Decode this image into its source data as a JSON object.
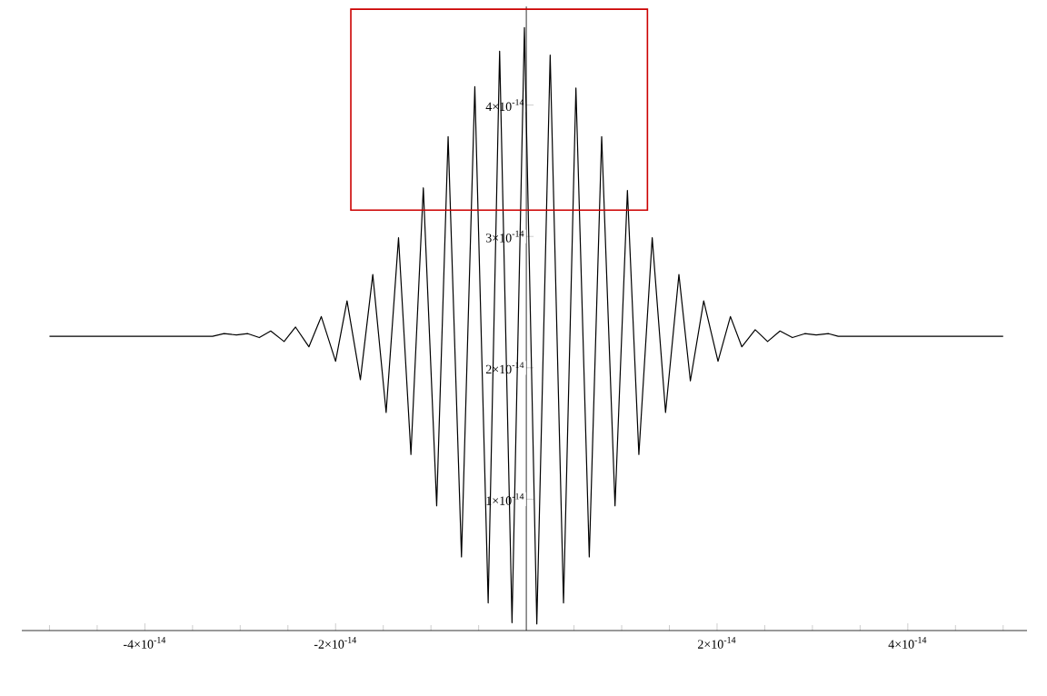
{
  "chart_data": {
    "type": "line",
    "x": [
      -5e-14,
      -3.29e-14,
      -3.17e-14,
      -3.04e-14,
      -2.92e-14,
      -2.8e-14,
      -2.68e-14,
      -2.54e-14,
      -2.42e-14,
      -2.28e-14,
      -2.15e-14,
      -2e-14,
      -1.88e-14,
      -1.74e-14,
      -1.61e-14,
      -1.47e-14,
      -1.34e-14,
      -1.21e-14,
      -1.08e-14,
      -9.4e-15,
      -8.2e-15,
      -6.8e-15,
      -5.4e-15,
      -4e-15,
      -2.8e-15,
      -1.5e-15,
      -2e-16,
      1.1e-15,
      2.5e-15,
      3.9e-15,
      5.2e-15,
      6.6e-15,
      7.9e-15,
      9.3e-15,
      1.06e-14,
      1.18e-14,
      1.32e-14,
      1.46e-14,
      1.6e-14,
      1.72e-14,
      1.86e-14,
      2.01e-14,
      2.14e-14,
      2.26e-14,
      2.4e-14,
      2.53e-14,
      2.66e-14,
      2.79e-14,
      2.92e-14,
      3.04e-14,
      3.17e-14,
      3.27e-14,
      5e-14
    ],
    "values": [
      2.24e-14,
      2.24e-14,
      2.26e-14,
      2.25e-14,
      2.26e-14,
      2.23e-14,
      2.28e-14,
      2.2e-14,
      2.31e-14,
      2.16e-14,
      2.39e-14,
      2.05e-14,
      2.51e-14,
      1.91e-14,
      2.71e-14,
      1.66e-14,
      2.99e-14,
      1.34e-14,
      3.37e-14,
      9.5e-15,
      3.76e-14,
      5.6e-15,
      4.14e-14,
      2.1e-15,
      4.41e-14,
      6e-16,
      4.59e-14,
      5e-16,
      4.38e-14,
      2.1e-15,
      4.13e-14,
      5.6e-15,
      3.76e-14,
      9.5e-15,
      3.35e-14,
      1.34e-14,
      2.99e-14,
      1.66e-14,
      2.71e-14,
      1.9e-14,
      2.51e-14,
      2.05e-14,
      2.39e-14,
      2.16e-14,
      2.29e-14,
      2.2e-14,
      2.28e-14,
      2.23e-14,
      2.26e-14,
      2.25e-14,
      2.26e-14,
      2.24e-14,
      2.24e-14
    ],
    "color": "#000000",
    "xlim": [
      -5.29e-14,
      5.25e-14
    ],
    "ylim": [
      0,
      4.75e-14
    ],
    "xticks": [
      {
        "value": -5e-14,
        "label": null
      },
      {
        "value": -4.5e-14,
        "label": null
      },
      {
        "value": -4e-14,
        "label": "-4×10$^{-14}$"
      },
      {
        "value": -3.5e-14,
        "label": null
      },
      {
        "value": -3e-14,
        "label": null
      },
      {
        "value": -2.5e-14,
        "label": null
      },
      {
        "value": -2e-14,
        "label": "-2×10$^{-14}$"
      },
      {
        "value": -1.5e-14,
        "label": null
      },
      {
        "value": -1e-14,
        "label": null
      },
      {
        "value": -5e-15,
        "label": null
      },
      {
        "value": 5e-15,
        "label": null
      },
      {
        "value": 1e-14,
        "label": null
      },
      {
        "value": 1.5e-14,
        "label": null
      },
      {
        "value": 2e-14,
        "label": "2×10$^{-14}$"
      },
      {
        "value": 2.5e-14,
        "label": null
      },
      {
        "value": 3e-14,
        "label": null
      },
      {
        "value": 3.5e-14,
        "label": null
      },
      {
        "value": 4e-14,
        "label": "4×10$^{-14}$"
      },
      {
        "value": 4.5e-14,
        "label": null
      },
      {
        "value": 5e-14,
        "label": null
      }
    ],
    "yticks": [
      {
        "value": 1e-14,
        "label": "1×10$^{-14}$"
      },
      {
        "value": 2e-14,
        "label": "2×10$^{-14}$"
      },
      {
        "value": 3e-14,
        "label": "3×10$^{-14}$"
      },
      {
        "value": 4e-14,
        "label": "4×10$^{-14}$"
      }
    ]
  }
}
